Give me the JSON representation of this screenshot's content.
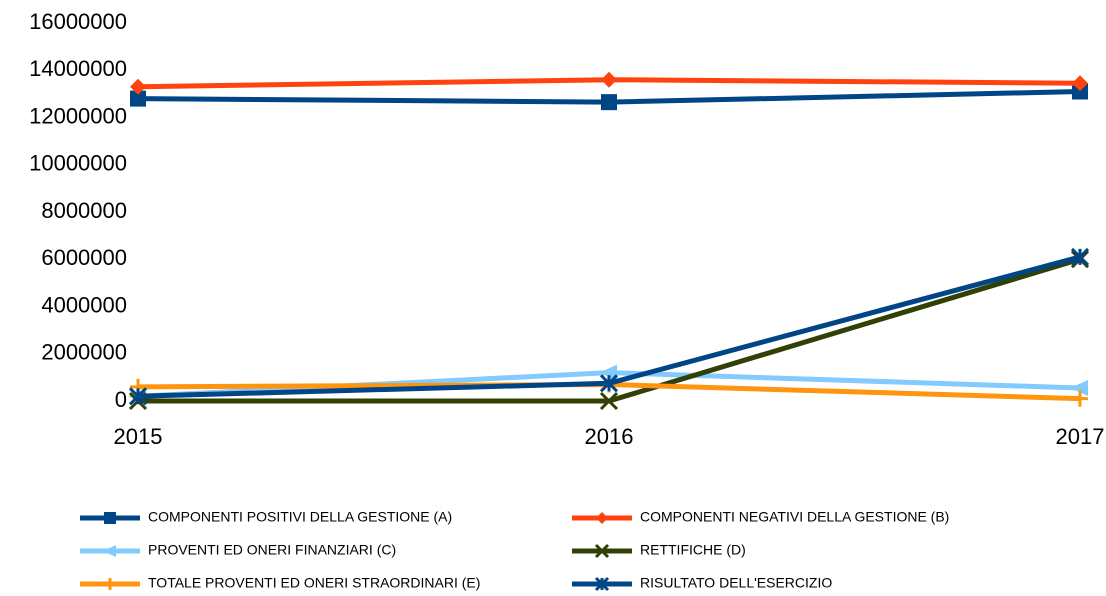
{
  "chart_data": {
    "type": "line",
    "categories": [
      "2015",
      "2016",
      "2017"
    ],
    "series": [
      {
        "name": "COMPONENTI POSITIVI DELLA GESTIONE (A)",
        "color": "#004586",
        "marker": "square",
        "values": [
          12800000,
          12650000,
          13100000
        ]
      },
      {
        "name": "COMPONENTI NEGATIVI DELLA GESTIONE (B)",
        "color": "#ff420e",
        "marker": "diamond",
        "values": [
          13300000,
          13600000,
          13450000
        ]
      },
      {
        "name": "PROVENTI ED ONERI FINANZIARI (C)",
        "color": "#83caff",
        "marker": "triangle",
        "values": [
          200000,
          1200000,
          550000
        ]
      },
      {
        "name": "RETTIFICHE (D)",
        "color": "#314004",
        "marker": "x",
        "values": [
          0,
          0,
          6000000
        ]
      },
      {
        "name": "TOTALE PROVENTI ED ONERI STRAORDINARI (E)",
        "color": "#ff950e",
        "marker": "plus",
        "values": [
          600000,
          700000,
          100000
        ]
      },
      {
        "name": "RISULTATO DELL'ESERCIZIO",
        "color": "#004586",
        "marker": "asterisk",
        "values": [
          200000,
          750000,
          6100000
        ]
      }
    ],
    "ylim": [
      0,
      16000000
    ],
    "yticks": [
      0,
      2000000,
      4000000,
      6000000,
      8000000,
      10000000,
      12000000,
      14000000,
      16000000
    ],
    "legend": "bottom"
  }
}
